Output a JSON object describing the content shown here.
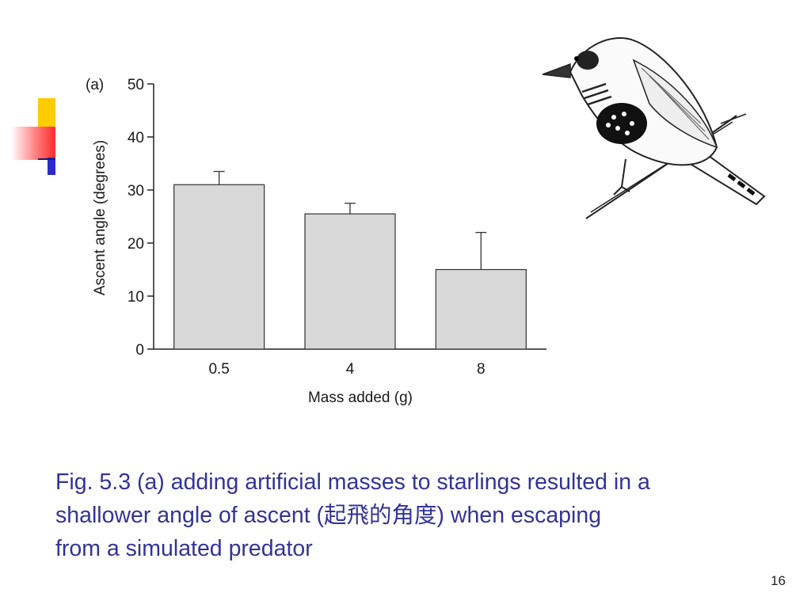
{
  "slide": {
    "caption_lines": [
      "Fig. 5.3 (a) adding artificial masses to starlings resulted in a",
      "shallower angle of ascent  (起飛的角度) when escaping",
      "from a simulated predator"
    ],
    "page_number": "16"
  },
  "chart_data": {
    "type": "bar",
    "panel_label": "(a)",
    "categories": [
      "0.5",
      "4",
      "8"
    ],
    "values": [
      31,
      25.5,
      15
    ],
    "error_upper": [
      33.5,
      27.5,
      22
    ],
    "xlabel": "Mass added (g)",
    "ylabel": "Ascent angle (degrees)",
    "ylim": [
      0,
      50
    ],
    "yticks": [
      "0",
      "10",
      "20",
      "30",
      "40",
      "50"
    ],
    "grid": false,
    "bar_color": "#d8d8d8"
  }
}
